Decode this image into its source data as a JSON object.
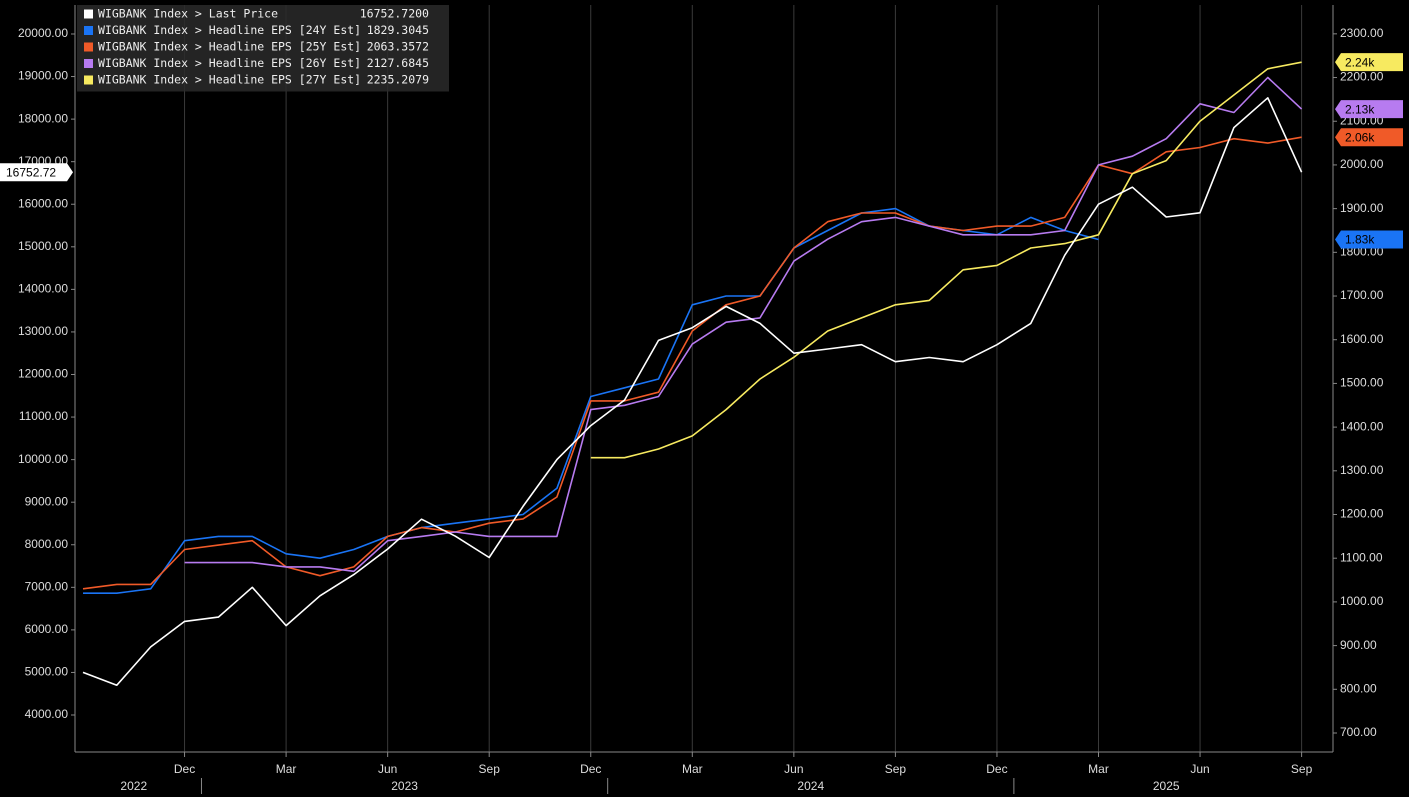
{
  "chart_data": {
    "type": "line",
    "x": [
      "2022-09",
      "2022-10",
      "2022-11",
      "2022-12",
      "2023-01",
      "2023-02",
      "2023-03",
      "2023-04",
      "2023-05",
      "2023-06",
      "2023-07",
      "2023-08",
      "2023-09",
      "2023-10",
      "2023-11",
      "2023-12",
      "2024-01",
      "2024-02",
      "2024-03",
      "2024-04",
      "2024-05",
      "2024-06",
      "2024-07",
      "2024-08",
      "2024-09",
      "2024-10",
      "2024-11",
      "2024-12",
      "2025-01",
      "2025-02",
      "2025-03",
      "2025-04",
      "2025-05",
      "2025-06",
      "2025-07",
      "2025-08",
      "2025-09"
    ],
    "xticks": [
      {
        "value": "2022-12",
        "label": "Dec"
      },
      {
        "value": "2023-03",
        "label": "Mar"
      },
      {
        "value": "2023-06",
        "label": "Jun"
      },
      {
        "value": "2023-09",
        "label": "Sep"
      },
      {
        "value": "2023-12",
        "label": "Dec"
      },
      {
        "value": "2024-03",
        "label": "Mar"
      },
      {
        "value": "2024-06",
        "label": "Jun"
      },
      {
        "value": "2024-09",
        "label": "Sep"
      },
      {
        "value": "2024-12",
        "label": "Dec"
      },
      {
        "value": "2025-03",
        "label": "Mar"
      },
      {
        "value": "2025-06",
        "label": "Jun"
      },
      {
        "value": "2025-09",
        "label": "Sep"
      }
    ],
    "years": [
      "2022",
      "2023",
      "2024",
      "2025"
    ],
    "ylim": [
      3131,
      20681
    ],
    "yticks": [
      {
        "value": 4000,
        "label": "4000.00"
      },
      {
        "value": 5000,
        "label": "5000.00"
      },
      {
        "value": 6000,
        "label": "6000.00"
      },
      {
        "value": 7000,
        "label": "7000.00"
      },
      {
        "value": 8000,
        "label": "8000.00"
      },
      {
        "value": 9000,
        "label": "9000.00"
      },
      {
        "value": 10000,
        "label": "10000.00"
      },
      {
        "value": 11000,
        "label": "11000.00"
      },
      {
        "value": 12000,
        "label": "12000.00"
      },
      {
        "value": 13000,
        "label": "13000.00"
      },
      {
        "value": 14000,
        "label": "14000.00"
      },
      {
        "value": 15000,
        "label": "15000.00"
      },
      {
        "value": 16000,
        "label": "16000.00"
      },
      {
        "value": 17000,
        "label": "17000.00"
      },
      {
        "value": 18000,
        "label": "18000.00"
      },
      {
        "value": 19000,
        "label": "19000.00"
      },
      {
        "value": 20000,
        "label": "20000.00"
      }
    ],
    "y2lim": [
      656.5,
      2366
    ],
    "y2ticks": [
      {
        "value": 700,
        "label": "700.00"
      },
      {
        "value": 800,
        "label": "800.00"
      },
      {
        "value": 900,
        "label": "900.00"
      },
      {
        "value": 1000,
        "label": "1000.00"
      },
      {
        "value": 1100,
        "label": "1100.00"
      },
      {
        "value": 1200,
        "label": "1200.00"
      },
      {
        "value": 1300,
        "label": "1300.00"
      },
      {
        "value": 1400,
        "label": "1400.00"
      },
      {
        "value": 1500,
        "label": "1500.00"
      },
      {
        "value": 1600,
        "label": "1600.00"
      },
      {
        "value": 1700,
        "label": "1700.00"
      },
      {
        "value": 1800,
        "label": "1800.00"
      },
      {
        "value": 1900,
        "label": "1900.00"
      },
      {
        "value": 2000,
        "label": "2000.00"
      },
      {
        "value": 2100,
        "label": "2100.00"
      },
      {
        "value": 2200,
        "label": "2200.00"
      },
      {
        "value": 2300,
        "label": "2300.00"
      }
    ],
    "grid": true,
    "legend": "top-left",
    "series": [
      {
        "name": "WIGBANK Index > Last Price",
        "color": "#ffffff",
        "axis": "y",
        "legend_value": "16752.7200",
        "tag": "16752.72",
        "values": [
          5000,
          4700,
          5600,
          6200,
          6300,
          7000,
          6100,
          6800,
          7300,
          7900,
          8600,
          8200,
          7700,
          8900,
          10000,
          10800,
          11400,
          12800,
          13100,
          13600,
          13200,
          12500,
          12600,
          12700,
          12300,
          12400,
          12300,
          12700,
          13200,
          14800,
          16000,
          16400,
          15700,
          15800,
          17800,
          18500,
          16752.72
        ]
      },
      {
        "name": "WIGBANK Index > Headline EPS [24Y Est]",
        "color": "#1a74f5",
        "axis": "y2",
        "legend_value": "1829.3045",
        "tag": "1.83k",
        "values": [
          1020,
          1020,
          1030,
          1140,
          1150,
          1150,
          1110,
          1100,
          1120,
          1150,
          1170,
          1180,
          1190,
          1200,
          1260,
          1470,
          1490,
          1510,
          1680,
          1700,
          1700,
          1810,
          1850,
          1890,
          1900,
          1860,
          1850,
          1840,
          1880,
          1850,
          1829.3045,
          null,
          null,
          null,
          null,
          null,
          null
        ]
      },
      {
        "name": "WIGBANK Index > Headline EPS [25Y Est]",
        "color": "#f05a28",
        "axis": "y2",
        "legend_value": "2063.3572",
        "tag": "2.06k",
        "values": [
          1030,
          1040,
          1040,
          1120,
          1130,
          1140,
          1080,
          1060,
          1080,
          1150,
          1170,
          1160,
          1180,
          1190,
          1240,
          1460,
          1460,
          1480,
          1620,
          1680,
          1700,
          1810,
          1870,
          1890,
          1890,
          1860,
          1850,
          1860,
          1860,
          1880,
          2000,
          1980,
          2030,
          2040,
          2060,
          2050,
          2063.3572
        ]
      },
      {
        "name": "WIGBANK Index > Headline EPS [26Y Est]",
        "color": "#b77bf0",
        "axis": "y2",
        "legend_value": "2127.6845",
        "tag": "2.13k",
        "values": [
          null,
          null,
          null,
          1090,
          1090,
          1090,
          1080,
          1080,
          1070,
          1140,
          1150,
          1160,
          1150,
          1150,
          1150,
          1440,
          1450,
          1470,
          1590,
          1640,
          1650,
          1780,
          1830,
          1870,
          1880,
          1860,
          1840,
          1840,
          1840,
          1850,
          2000,
          2020,
          2060,
          2140,
          2120,
          2200,
          2127.6845
        ]
      },
      {
        "name": "WIGBANK Index > Headline EPS [27Y Est]",
        "color": "#f7ea60",
        "axis": "y2",
        "legend_value": "2235.2079",
        "tag": "2.24k",
        "values": [
          null,
          null,
          null,
          null,
          null,
          null,
          null,
          null,
          null,
          null,
          null,
          null,
          null,
          null,
          null,
          1330,
          1330,
          1350,
          1380,
          1440,
          1510,
          1560,
          1620,
          1650,
          1680,
          1690,
          1760,
          1770,
          1810,
          1820,
          1840,
          1980,
          2010,
          2100,
          2160,
          2220,
          2235.2079
        ]
      }
    ]
  }
}
